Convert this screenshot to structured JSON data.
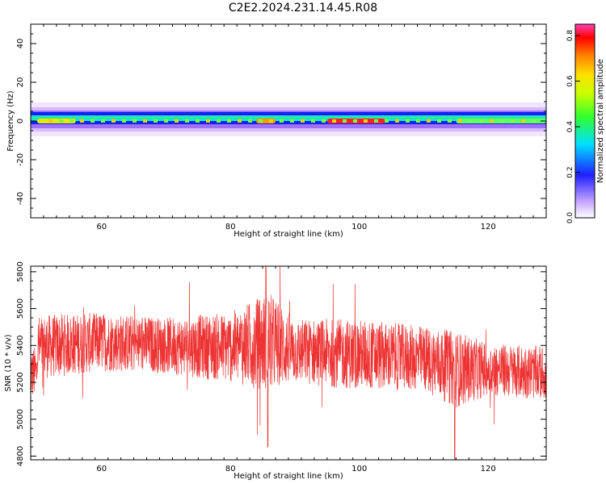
{
  "page": {
    "title": "C2E2.2024.231.14.45.R08"
  },
  "chart_data": [
    {
      "type": "heatmap",
      "xlabel": "Height of straight line (km)",
      "ylabel": "Frequency (Hz)",
      "xlim": [
        49,
        129
      ],
      "ylim": [
        -50,
        50
      ],
      "xticks": [
        60,
        80,
        100,
        120
      ],
      "yticks": [
        -40,
        -20,
        0,
        20,
        40
      ],
      "band_center_hz": 0,
      "peak_regions": [
        {
          "x_range": [
            50,
            56
          ],
          "amplitude": 0.55
        },
        {
          "x_range": [
            84,
            87
          ],
          "amplitude": 0.65
        },
        {
          "x_range": [
            95,
            104
          ],
          "amplitude": 0.8
        },
        {
          "x_range": [
            115,
            129
          ],
          "amplitude": 0.4
        }
      ],
      "colorbar": {
        "label": "Normalized spectral amplitude",
        "range": [
          0,
          0.85
        ],
        "ticks": [
          0.0,
          0.2,
          0.4,
          0.6,
          0.8
        ]
      }
    },
    {
      "type": "line",
      "xlabel": "Height of straight line (km)",
      "ylabel": "SNR (10 * v/v)",
      "xlim": [
        49,
        129
      ],
      "ylim": [
        4780,
        5830
      ],
      "xticks": [
        60,
        80,
        100,
        120
      ],
      "yticks": [
        4800,
        5000,
        5200,
        5400,
        5600,
        5800
      ],
      "color": "#ee3333",
      "trend": [
        {
          "x": 50,
          "mean": 5390,
          "spread": 110
        },
        {
          "x": 60,
          "mean": 5420,
          "spread": 100
        },
        {
          "x": 70,
          "mean": 5400,
          "spread": 95
        },
        {
          "x": 80,
          "mean": 5390,
          "spread": 120
        },
        {
          "x": 86,
          "mean": 5420,
          "spread": 170
        },
        {
          "x": 90,
          "mean": 5370,
          "spread": 110
        },
        {
          "x": 100,
          "mean": 5350,
          "spread": 120
        },
        {
          "x": 110,
          "mean": 5330,
          "spread": 110
        },
        {
          "x": 115,
          "mean": 5270,
          "spread": 130
        },
        {
          "x": 120,
          "mean": 5270,
          "spread": 90
        },
        {
          "x": 129,
          "mean": 5250,
          "spread": 90
        }
      ],
      "extremes": [
        {
          "x": 85.5,
          "y": 5830
        },
        {
          "x": 85.8,
          "y": 4850
        },
        {
          "x": 114.8,
          "y": 4780
        },
        {
          "x": 113.8,
          "y": 5450
        }
      ]
    }
  ]
}
